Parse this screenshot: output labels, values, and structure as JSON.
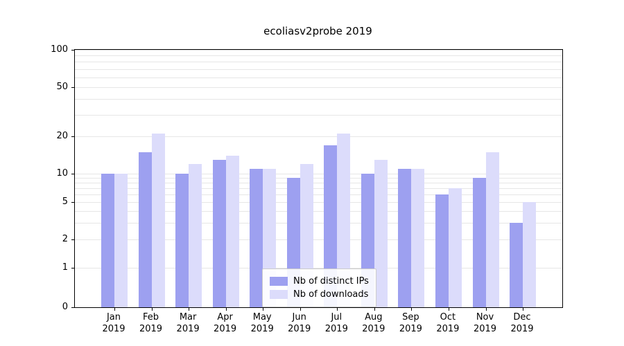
{
  "title": "ecoliasv2probe 2019",
  "colors": {
    "distinct_ips": "#9da0f0",
    "downloads": "#dcdcfb",
    "grid": "#e6e6e6",
    "axis": "#000000"
  },
  "legend": {
    "items": [
      {
        "label": "Nb of distinct IPs",
        "color": "#9da0f0"
      },
      {
        "label": "Nb of downloads",
        "color": "#dcdcfb"
      }
    ]
  },
  "chart_data": {
    "type": "bar",
    "title": "ecoliasv2probe 2019",
    "categories": [
      "Jan",
      "Feb",
      "Mar",
      "Apr",
      "May",
      "Jun",
      "Jul",
      "Aug",
      "Sep",
      "Oct",
      "Nov",
      "Dec"
    ],
    "category_year": "2019",
    "series": [
      {
        "name": "Nb of distinct IPs",
        "color": "#9da0f0",
        "values": [
          10,
          15,
          10,
          13,
          11,
          9,
          17,
          10,
          11,
          6,
          9,
          3
        ]
      },
      {
        "name": "Nb of downloads",
        "color": "#dcdcfb",
        "values": [
          10,
          21,
          12,
          14,
          11,
          12,
          21,
          13,
          11,
          7,
          15,
          5
        ]
      }
    ],
    "yscale": "symlog",
    "ylim": [
      0,
      100
    ],
    "yticks": [
      0,
      1,
      2,
      5,
      10,
      20,
      50,
      100
    ],
    "grid_values": [
      1,
      2,
      3,
      4,
      5,
      6,
      7,
      8,
      9,
      10,
      20,
      30,
      40,
      50,
      60,
      70,
      80,
      90,
      100
    ],
    "grid": true,
    "legend_position": "lower center"
  }
}
